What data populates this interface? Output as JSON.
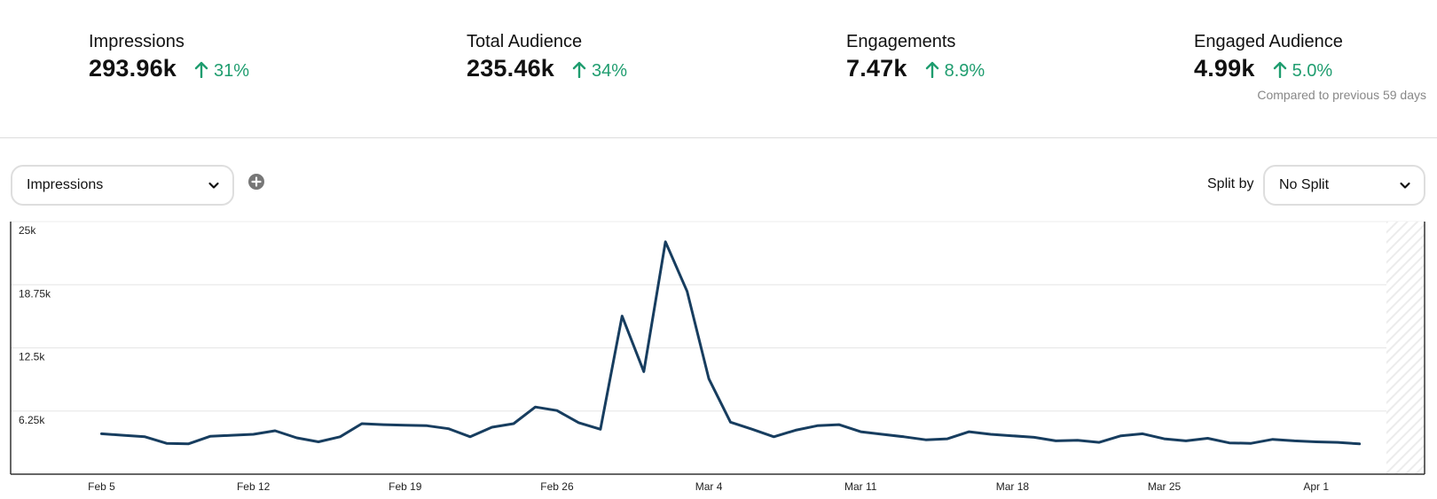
{
  "stats": [
    {
      "label": "Impressions",
      "value": "293.96k",
      "change": "31%",
      "direction": "up"
    },
    {
      "label": "Total Audience",
      "value": "235.46k",
      "change": "34%",
      "direction": "up"
    },
    {
      "label": "Engagements",
      "value": "7.47k",
      "change": "8.9%",
      "direction": "up"
    },
    {
      "label": "Engaged Audience",
      "value": "4.99k",
      "change": "5.0%",
      "direction": "up"
    }
  ],
  "comparison_note": "Compared to previous 59 days",
  "controls": {
    "metric_select": {
      "value": "Impressions"
    },
    "add_metric_icon": "plus-circle-icon",
    "split_label": "Split by",
    "split_select": {
      "value": "No Split"
    }
  },
  "colors": {
    "positive": "#1f9d6f",
    "line": "#173d5f",
    "grid": "#e6e6e6",
    "axis": "#333333"
  },
  "chart_data": {
    "type": "line",
    "title": "",
    "xlabel": "",
    "ylabel": "",
    "ylim": [
      0,
      25000
    ],
    "yticks": [
      {
        "value": 6250,
        "label": "6.25k"
      },
      {
        "value": 12500,
        "label": "12.5k"
      },
      {
        "value": 18750,
        "label": "18.75k"
      },
      {
        "value": 25000,
        "label": "25k"
      }
    ],
    "xticks": [
      {
        "index": 0,
        "label": "Feb 5"
      },
      {
        "index": 7,
        "label": "Feb 12"
      },
      {
        "index": 14,
        "label": "Feb 19"
      },
      {
        "index": 21,
        "label": "Feb 26"
      },
      {
        "index": 28,
        "label": "Mar 4"
      },
      {
        "index": 35,
        "label": "Mar 11"
      },
      {
        "index": 42,
        "label": "Mar 18"
      },
      {
        "index": 49,
        "label": "Mar 25"
      },
      {
        "index": 56,
        "label": "Apr 1"
      }
    ],
    "grid": true,
    "legend": "none",
    "x": [
      "Feb 5",
      "Feb 6",
      "Feb 7",
      "Feb 8",
      "Feb 9",
      "Feb 10",
      "Feb 11",
      "Feb 12",
      "Feb 13",
      "Feb 14",
      "Feb 15",
      "Feb 16",
      "Feb 17",
      "Feb 18",
      "Feb 19",
      "Feb 20",
      "Feb 21",
      "Feb 22",
      "Feb 23",
      "Feb 24",
      "Feb 25",
      "Feb 26",
      "Feb 27",
      "Feb 28",
      "Feb 29",
      "Mar 1",
      "Mar 2",
      "Mar 3",
      "Mar 4",
      "Mar 5",
      "Mar 6",
      "Mar 7",
      "Mar 8",
      "Mar 9",
      "Mar 10",
      "Mar 11",
      "Mar 12",
      "Mar 13",
      "Mar 14",
      "Mar 15",
      "Mar 16",
      "Mar 17",
      "Mar 18",
      "Mar 19",
      "Mar 20",
      "Mar 21",
      "Mar 22",
      "Mar 23",
      "Mar 24",
      "Mar 25",
      "Mar 26",
      "Mar 27",
      "Mar 28",
      "Mar 29",
      "Mar 30",
      "Mar 31",
      "Apr 1",
      "Apr 2",
      "Apr 3"
    ],
    "series": [
      {
        "name": "Impressions",
        "values": [
          4000,
          3850,
          3700,
          3050,
          3000,
          3750,
          3850,
          3950,
          4300,
          3600,
          3200,
          3700,
          5000,
          4900,
          4850,
          4800,
          4500,
          3700,
          4650,
          5000,
          6650,
          6300,
          5100,
          4450,
          15650,
          10150,
          23000,
          18100,
          9450,
          5150,
          4450,
          3700,
          4350,
          4800,
          4900,
          4200,
          3950,
          3700,
          3400,
          3500,
          4200,
          3950,
          3800,
          3650,
          3300,
          3350,
          3150,
          3800,
          4000,
          3500,
          3300,
          3550,
          3100,
          3050,
          3450,
          3300,
          3200,
          3150,
          3000
        ]
      }
    ],
    "incomplete_period": "after Apr 3"
  }
}
